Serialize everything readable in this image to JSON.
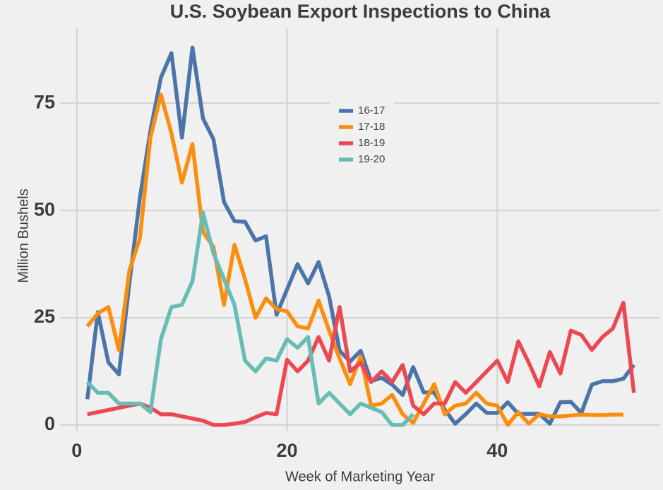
{
  "chart_data": {
    "type": "line",
    "title": "U.S. Soybean Export Inspections to China",
    "xlabel": "Week of Marketing Year",
    "ylabel": "Million Bushels",
    "x": [
      1,
      2,
      3,
      4,
      5,
      6,
      7,
      8,
      9,
      10,
      11,
      12,
      13,
      14,
      15,
      16,
      17,
      18,
      19,
      20,
      21,
      22,
      23,
      24,
      25,
      26,
      27,
      28,
      29,
      30,
      31,
      32,
      33,
      34,
      35,
      36,
      37,
      38,
      39,
      40,
      41,
      42,
      43,
      44,
      45,
      46,
      47,
      48,
      49,
      50,
      51,
      52,
      53
    ],
    "series": [
      {
        "name": "16-17",
        "color": "#4a74aa",
        "values": [
          6,
          26.3,
          14.6,
          11.8,
          33,
          53,
          68.6,
          81,
          86.7,
          67,
          88,
          71.5,
          66.6,
          52,
          47.5,
          47.4,
          43,
          44,
          25.7,
          31.6,
          37.5,
          33,
          38,
          30,
          17.3,
          14.8,
          17.3,
          10.2,
          11,
          9.4,
          7,
          13.5,
          7.6,
          7.6,
          3.6,
          0.3,
          2.5,
          5,
          2.8,
          2.8,
          5.3,
          2.6,
          2.6,
          2.6,
          0.3,
          5.3,
          5.4,
          2.8,
          9.4,
          10.2,
          10.2,
          10.8,
          14
        ]
      },
      {
        "name": "17-18",
        "color": "#fb8e0f",
        "values": [
          23,
          26,
          27.5,
          17.5,
          36,
          43.5,
          67,
          77,
          68,
          56.5,
          65.5,
          45,
          41.5,
          28,
          42,
          34,
          25,
          29.5,
          27,
          26.5,
          23,
          22.5,
          29,
          22,
          15.5,
          9.5,
          16,
          4.5,
          5,
          7,
          2.5,
          0.5,
          5,
          9.5,
          2.5,
          4.5,
          5,
          7.5,
          5,
          4.5,
          0,
          3,
          0.3,
          2.5,
          2,
          2,
          2.2,
          2.4,
          2.3,
          2.3,
          2.4,
          2.4,
          null
        ]
      },
      {
        "name": "18-19",
        "color": "#ec4852",
        "values": [
          2.5,
          3,
          3.5,
          4,
          4.5,
          5,
          4,
          2.5,
          2.5,
          2,
          1.5,
          1,
          0,
          0,
          0.3,
          0.7,
          1.8,
          2.8,
          2.5,
          15.2,
          12.5,
          15,
          20.5,
          15,
          27.5,
          12.5,
          14.5,
          10,
          12.5,
          10,
          14,
          4.5,
          2.5,
          5,
          5,
          10,
          7.5,
          10,
          12.5,
          15,
          10,
          19.5,
          14.5,
          9,
          17,
          12,
          22,
          21,
          17.5,
          20.5,
          22.5,
          28.5,
          7.5
        ]
      },
      {
        "name": "19-20",
        "color": "#67bdb6",
        "values": [
          10,
          7.5,
          7.5,
          5,
          5,
          5,
          3,
          20,
          27.5,
          28,
          33.5,
          49.5,
          40,
          34,
          28,
          15,
          12.5,
          15.5,
          15,
          20,
          18,
          20.5,
          5,
          7.5,
          5,
          2.5,
          5,
          4,
          3,
          0,
          0,
          2.5,
          null,
          null,
          null,
          null,
          null,
          null,
          null,
          null,
          null,
          null,
          null,
          null,
          null,
          null,
          null,
          null,
          null,
          null,
          null,
          null,
          null
        ]
      }
    ],
    "xlim": [
      -1.6,
      55.5
    ],
    "xticks": [
      0,
      20,
      40
    ],
    "ylim": [
      -1.5,
      92.5
    ],
    "yticks": [
      0,
      25,
      50,
      75
    ],
    "grid": true,
    "legend": "upper center"
  }
}
